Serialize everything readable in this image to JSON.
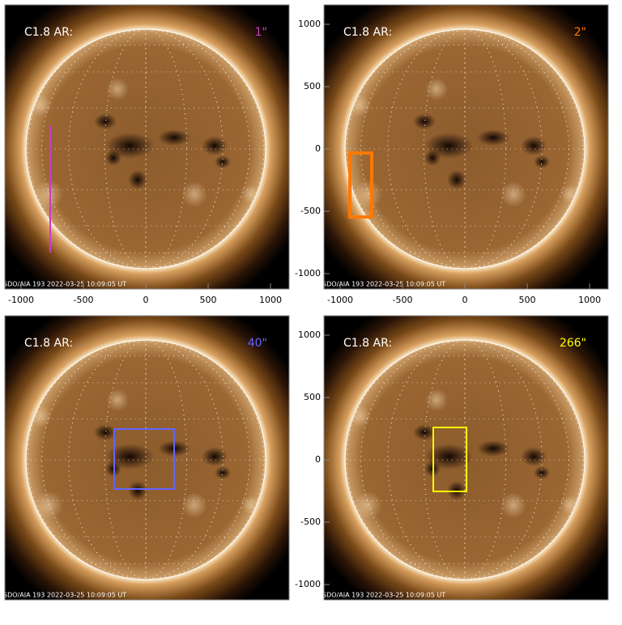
{
  "panels": [
    {
      "title": "C1.8 AR:",
      "size_label": "1\"",
      "color": "#c83cc8",
      "footer": "SDO/AIA 193 2022-03-25 10:09:05 UT",
      "xticks": [
        -1000,
        -500,
        0,
        500,
        1000
      ]
    },
    {
      "title": "C1.8 AR:",
      "size_label": "2\"",
      "color": "#ff7800",
      "footer": "SDO/AIA 193 2022-03-25 10:09:05 UT",
      "xticks": [
        -1000,
        -500,
        0,
        500,
        1000
      ],
      "yticks": [
        1000,
        500,
        0,
        -500,
        -1000
      ]
    },
    {
      "title": "C1.8 AR:",
      "size_label": "40\"",
      "color": "#6464ff",
      "footer": "SDO/AIA 193 2022-03-25 10:09:05 UT"
    },
    {
      "title": "C1.8 AR:",
      "size_label": "266\"",
      "color": "#ffff00",
      "footer": "SDO/AIA 193 2022-03-25 10:09:05 UT",
      "yticks": [
        1000,
        500,
        0,
        -500,
        -1000
      ]
    }
  ]
}
